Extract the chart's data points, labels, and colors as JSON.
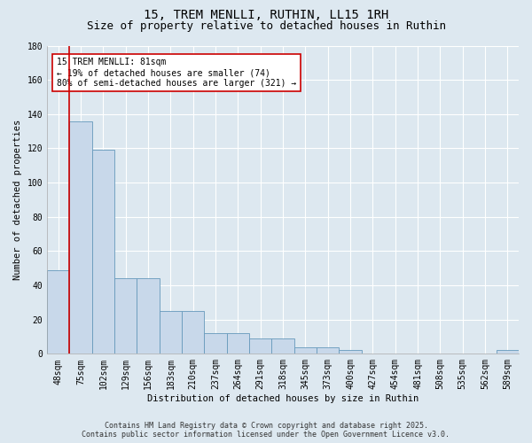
{
  "title_line1": "15, TREM MENLLI, RUTHIN, LL15 1RH",
  "title_line2": "Size of property relative to detached houses in Ruthin",
  "xlabel": "Distribution of detached houses by size in Ruthin",
  "ylabel": "Number of detached properties",
  "bar_labels": [
    "48sqm",
    "75sqm",
    "102sqm",
    "129sqm",
    "156sqm",
    "183sqm",
    "210sqm",
    "237sqm",
    "264sqm",
    "291sqm",
    "318sqm",
    "345sqm",
    "373sqm",
    "400sqm",
    "427sqm",
    "454sqm",
    "481sqm",
    "508sqm",
    "535sqm",
    "562sqm",
    "589sqm"
  ],
  "bar_values": [
    49,
    136,
    119,
    44,
    44,
    25,
    25,
    12,
    12,
    9,
    9,
    4,
    4,
    2,
    0,
    0,
    0,
    0,
    0,
    0,
    2
  ],
  "bar_color": "#c8d8ea",
  "bar_edge_color": "#6699bb",
  "ylim": [
    0,
    180
  ],
  "yticks": [
    0,
    20,
    40,
    60,
    80,
    100,
    120,
    140,
    160,
    180
  ],
  "property_line_x": 0.5,
  "property_line_color": "#cc0000",
  "annotation_text": "15 TREM MENLLI: 81sqm\n← 19% of detached houses are smaller (74)\n80% of semi-detached houses are larger (321) →",
  "annotation_box_color": "#ffffff",
  "annotation_box_edge_color": "#cc0000",
  "footer_line1": "Contains HM Land Registry data © Crown copyright and database right 2025.",
  "footer_line2": "Contains public sector information licensed under the Open Government Licence v3.0.",
  "background_color": "#dde8f0",
  "plot_bg_color": "#dde8f0",
  "grid_color": "#ffffff",
  "title_fontsize": 10,
  "subtitle_fontsize": 9,
  "axis_label_fontsize": 7.5,
  "tick_fontsize": 7,
  "annotation_fontsize": 7,
  "footer_fontsize": 6
}
